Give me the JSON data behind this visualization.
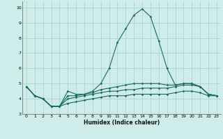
{
  "xlabel": "Humidex (Indice chaleur)",
  "ylabel": "",
  "background_color": "#ceecea",
  "grid_color": "#aed4d0",
  "line_color": "#1a6b5a",
  "x_values": [
    0,
    1,
    2,
    3,
    4,
    5,
    6,
    7,
    8,
    9,
    10,
    11,
    12,
    13,
    14,
    15,
    16,
    17,
    18,
    19,
    20,
    21,
    22,
    23
  ],
  "series1": [
    4.8,
    4.2,
    4.0,
    3.5,
    3.5,
    4.5,
    4.3,
    4.3,
    4.5,
    5.0,
    6.0,
    7.7,
    8.6,
    9.5,
    9.9,
    9.4,
    7.8,
    6.0,
    4.9,
    5.0,
    5.0,
    4.8,
    4.3,
    4.2
  ],
  "series2": [
    4.8,
    4.2,
    4.0,
    3.5,
    3.5,
    4.2,
    4.2,
    4.3,
    4.4,
    4.6,
    4.7,
    4.8,
    4.9,
    5.0,
    5.0,
    5.0,
    5.0,
    4.9,
    4.9,
    5.0,
    5.0,
    4.8,
    4.3,
    4.2
  ],
  "series3": [
    4.8,
    4.2,
    4.0,
    3.5,
    3.5,
    4.0,
    4.1,
    4.2,
    4.3,
    4.4,
    4.5,
    4.5,
    4.6,
    4.6,
    4.7,
    4.7,
    4.7,
    4.7,
    4.8,
    4.9,
    4.9,
    4.8,
    4.3,
    4.2
  ],
  "series4": [
    4.8,
    4.2,
    4.0,
    3.5,
    3.5,
    3.7,
    3.8,
    3.9,
    4.0,
    4.1,
    4.2,
    4.2,
    4.2,
    4.3,
    4.3,
    4.3,
    4.3,
    4.3,
    4.4,
    4.5,
    4.5,
    4.4,
    4.2,
    4.2
  ],
  "ylim": [
    3.0,
    10.4
  ],
  "xlim": [
    -0.5,
    23.5
  ],
  "yticks": [
    3,
    4,
    5,
    6,
    7,
    8,
    9,
    10
  ],
  "xticks": [
    0,
    1,
    2,
    3,
    4,
    5,
    6,
    7,
    8,
    9,
    10,
    11,
    12,
    13,
    14,
    15,
    16,
    17,
    18,
    19,
    20,
    21,
    22,
    23
  ]
}
